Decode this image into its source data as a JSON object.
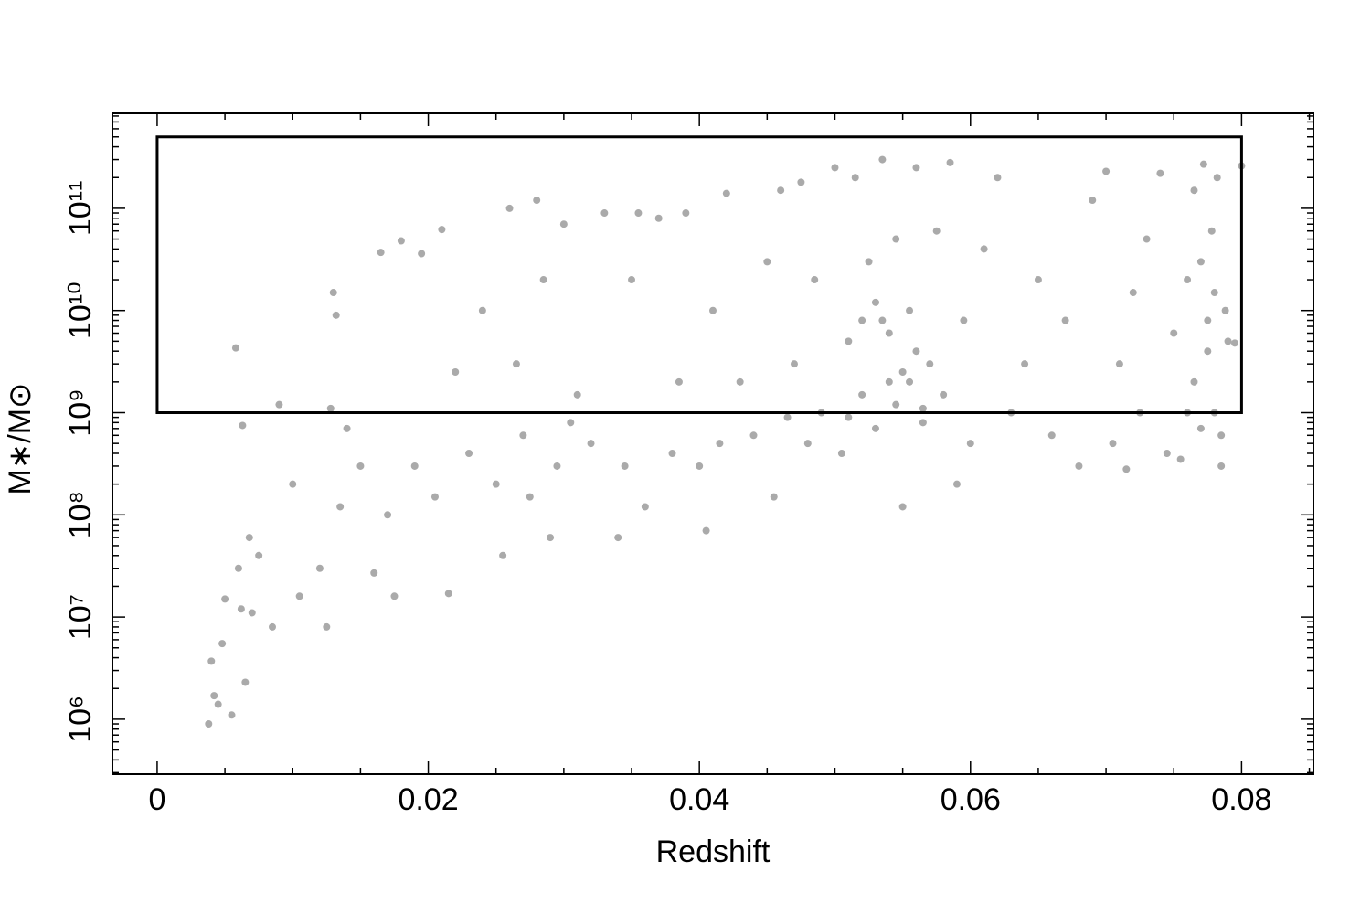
{
  "chart_data": {
    "type": "scatter",
    "xlabel": "Redshift",
    "ylabel": "M∗/M⊙",
    "color": "#aaaaaa",
    "log_y": true,
    "xlim": [
      -0.0033,
      0.0853
    ],
    "ylim": [
      290000.0,
      850000000000.0
    ],
    "xticks": [
      0,
      0.02,
      0.04,
      0.06,
      0.08
    ],
    "x_minor_ticks": [
      0.005,
      0.01,
      0.015,
      0.025,
      0.03,
      0.035,
      0.045,
      0.05,
      0.055,
      0.065,
      0.07,
      0.075,
      0.085
    ],
    "yticks": [
      {
        "value": 1000000.0,
        "label": "10⁶"
      },
      {
        "value": 10000000.0,
        "label": "10⁷"
      },
      {
        "value": 100000000.0,
        "label": "10⁸"
      },
      {
        "value": 1000000000.0,
        "label": "10⁹"
      },
      {
        "value": 10000000000.0,
        "label": "10¹⁰"
      },
      {
        "value": 100000000000.0,
        "label": "10¹¹"
      }
    ],
    "y_minor_ticks": [
      300000.0,
      400000.0,
      500000.0,
      600000.0,
      700000.0,
      800000.0,
      900000.0,
      2000000.0,
      3000000.0,
      4000000.0,
      5000000.0,
      6000000.0,
      7000000.0,
      8000000.0,
      9000000.0,
      20000000.0,
      30000000.0,
      40000000.0,
      50000000.0,
      60000000.0,
      70000000.0,
      80000000.0,
      90000000.0,
      200000000.0,
      300000000.0,
      400000000.0,
      500000000.0,
      600000000.0,
      700000000.0,
      800000000.0,
      900000000.0,
      2000000000.0,
      3000000000.0,
      4000000000.0,
      5000000000.0,
      6000000000.0,
      7000000000.0,
      8000000000.0,
      9000000000.0,
      20000000000.0,
      30000000000.0,
      40000000000.0,
      50000000000.0,
      60000000000.0,
      70000000000.0,
      80000000000.0,
      90000000000.0,
      200000000000.0,
      300000000000.0,
      400000000000.0,
      500000000000.0,
      600000000000.0,
      700000000000.0,
      800000000000.0
    ],
    "region": {
      "xlim": [
        0,
        0.08
      ],
      "ylim": [
        1000000000.0,
        500000000000.0
      ]
    },
    "x": [
      0.0038,
      0.0042,
      0.0045,
      0.004,
      0.0048,
      0.005,
      0.0055,
      0.0058,
      0.006,
      0.0062,
      0.0065,
      0.0068,
      0.007,
      0.0063,
      0.0075,
      0.0085,
      0.009,
      0.01,
      0.0105,
      0.012,
      0.0125,
      0.013,
      0.0132,
      0.0128,
      0.0135,
      0.014,
      0.015,
      0.016,
      0.0165,
      0.017,
      0.0175,
      0.018,
      0.019,
      0.0195,
      0.0205,
      0.021,
      0.0215,
      0.022,
      0.023,
      0.024,
      0.025,
      0.026,
      0.027,
      0.028,
      0.029,
      0.03,
      0.0255,
      0.0265,
      0.0275,
      0.0285,
      0.0295,
      0.0305,
      0.031,
      0.032,
      0.033,
      0.034,
      0.0345,
      0.035,
      0.0355,
      0.036,
      0.037,
      0.038,
      0.0385,
      0.039,
      0.04,
      0.0405,
      0.041,
      0.0415,
      0.042,
      0.043,
      0.044,
      0.045,
      0.0455,
      0.046,
      0.0465,
      0.047,
      0.0475,
      0.048,
      0.0485,
      0.049,
      0.05,
      0.0505,
      0.051,
      0.0515,
      0.052,
      0.0525,
      0.053,
      0.0535,
      0.054,
      0.0545,
      0.055,
      0.0555,
      0.056,
      0.0565,
      0.057,
      0.0575,
      0.058,
      0.0585,
      0.059,
      0.0595,
      0.06,
      0.061,
      0.062,
      0.063,
      0.064,
      0.065,
      0.066,
      0.067,
      0.068,
      0.069,
      0.07,
      0.0705,
      0.071,
      0.0715,
      0.072,
      0.0725,
      0.073,
      0.074,
      0.0745,
      0.075,
      0.0755,
      0.076,
      0.0765,
      0.077,
      0.0772,
      0.0775,
      0.0778,
      0.078,
      0.0782,
      0.0785,
      0.0788,
      0.079,
      0.0795,
      0.08,
      0.0765,
      0.0775,
      0.078,
      0.077,
      0.076,
      0.0785,
      0.0535,
      0.0545,
      0.0555,
      0.052,
      0.053,
      0.054,
      0.055,
      0.056,
      0.0565,
      0.051
    ],
    "values": [
      900000.0,
      1700000.0,
      1400000.0,
      3700000.0,
      5500000.0,
      15000000.0,
      1100000.0,
      4300000000.0,
      30000000.0,
      12000000.0,
      2300000.0,
      60000000.0,
      11000000.0,
      750000000.0,
      40000000.0,
      8000000.0,
      1200000000.0,
      200000000.0,
      16000000.0,
      30000000.0,
      8000000.0,
      15000000000.0,
      9000000000.0,
      1100000000.0,
      120000000.0,
      700000000.0,
      300000000.0,
      27000000.0,
      37000000000.0,
      100000000.0,
      16000000.0,
      48000000000.0,
      300000000.0,
      36000000000.0,
      150000000.0,
      62000000000.0,
      17000000.0,
      2500000000.0,
      400000000.0,
      10000000000.0,
      200000000.0,
      100000000000.0,
      600000000.0,
      120000000000.0,
      60000000.0,
      70000000000.0,
      40000000.0,
      3000000000.0,
      150000000.0,
      20000000000.0,
      300000000.0,
      800000000.0,
      1500000000.0,
      500000000.0,
      90000000000.0,
      60000000.0,
      300000000.0,
      20000000000.0,
      90000000000.0,
      120000000.0,
      80000000000.0,
      400000000.0,
      2000000000.0,
      90000000000.0,
      300000000.0,
      70000000.0,
      10000000000.0,
      500000000.0,
      140000000000.0,
      2000000000.0,
      600000000.0,
      30000000000.0,
      150000000.0,
      150000000000.0,
      900000000.0,
      3000000000.0,
      180000000000.0,
      500000000.0,
      20000000000.0,
      1000000000.0,
      250000000000.0,
      400000000.0,
      5000000000.0,
      200000000000.0,
      1500000000.0,
      30000000000.0,
      700000000.0,
      300000000000.0,
      2000000000.0,
      50000000000.0,
      120000000.0,
      10000000000.0,
      250000000000.0,
      800000000.0,
      3000000000.0,
      60000000000.0,
      1500000000.0,
      280000000000.0,
      200000000.0,
      8000000000.0,
      500000000.0,
      40000000000.0,
      200000000000.0,
      1000000000.0,
      3000000000.0,
      20000000000.0,
      600000000.0,
      8000000000.0,
      300000000.0,
      120000000000.0,
      230000000000.0,
      500000000.0,
      3000000000.0,
      280000000.0,
      15000000000.0,
      1000000000.0,
      50000000000.0,
      220000000000.0,
      400000000.0,
      6000000000.0,
      350000000.0,
      20000000000.0,
      150000000000.0,
      700000000.0,
      270000000000.0,
      4000000000.0,
      60000000000.0,
      1000000000.0,
      200000000000.0,
      300000000.0,
      10000000000.0,
      5000000000.0,
      4800000000.0,
      260000000000.0,
      2000000000.0,
      8000000000.0,
      15000000000.0,
      30000000000.0,
      1000000000.0,
      600000000.0,
      8000000000.0,
      1200000000.0,
      2000000000.0,
      8000000000.0,
      12000000000.0,
      6000000000.0,
      2500000000.0,
      4000000000.0,
      1100000000.0,
      900000000.0
    ]
  }
}
